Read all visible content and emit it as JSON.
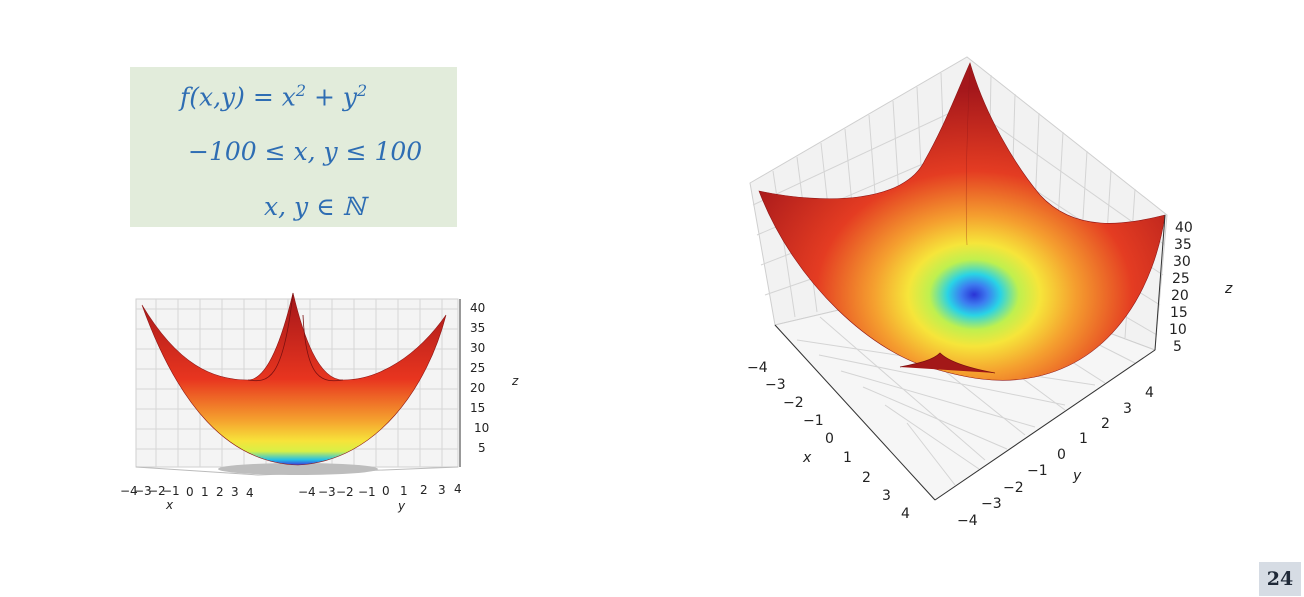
{
  "formulas": {
    "line1_prefix": "f(x,y) = x",
    "line1_exp1": "2",
    "line1_mid": " + y",
    "line1_exp2": "2",
    "line2": "−100 ≤ x, y ≤ 100",
    "line3": "x, y ∈ ℕ"
  },
  "surface_plots": {
    "function": "z = x² + y²",
    "colormap": [
      "#3b3cd8",
      "#22c0e8",
      "#d8f046",
      "#f7e33a",
      "#f5a12e",
      "#e8351f",
      "#a3161a"
    ],
    "left_view": {
      "z_ticks": [
        "40",
        "35",
        "30",
        "25",
        "20",
        "15",
        "10",
        "5"
      ],
      "z_label": "z",
      "x_ticks": [
        "−4",
        "−3",
        "−2",
        "−1",
        "0",
        "1",
        "2",
        "3",
        "4"
      ],
      "x_label": "x",
      "y_ticks": [
        "−4",
        "−3",
        "−2",
        "−1",
        "0",
        "1",
        "2",
        "3",
        "4"
      ],
      "y_label": "y"
    },
    "right_view": {
      "z_ticks": [
        "40",
        "35",
        "30",
        "25",
        "20",
        "15",
        "10",
        "5"
      ],
      "z_label": "z",
      "x_ticks": [
        "−4",
        "−3",
        "−2",
        "−1",
        "0",
        "1",
        "2",
        "3",
        "4"
      ],
      "x_label": "x",
      "y_ticks": [
        "4",
        "3",
        "2",
        "1",
        "0",
        "−1",
        "−2",
        "−3",
        "−4"
      ],
      "y_label": "y"
    }
  },
  "page_number": "24"
}
